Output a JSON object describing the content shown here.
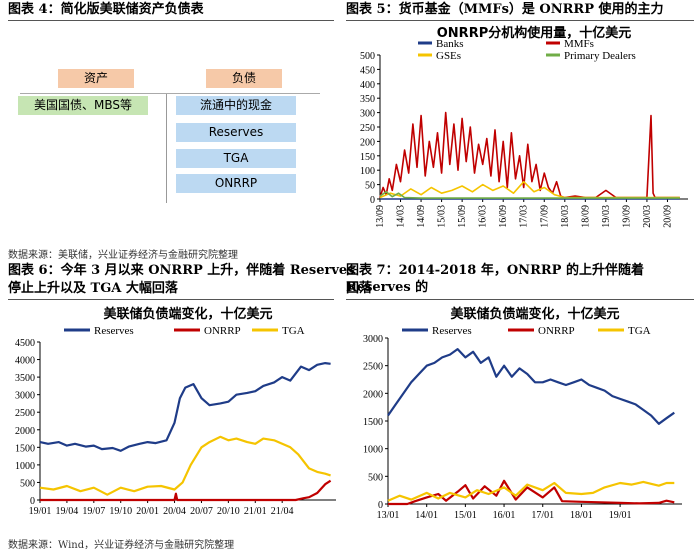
{
  "fig4": {
    "title": "图表 4：简化版美联储资产负债表",
    "assets_label": "资产",
    "liabilities_label": "负债",
    "asset_items": [
      "美国国债、MBS等"
    ],
    "liability_items": [
      "流通中的现金",
      "Reserves",
      "TGA",
      "ONRRP"
    ],
    "colors": {
      "header": "#f6c9a8",
      "asset": "#c6e5b3",
      "liability": "#bcd9f2"
    }
  },
  "fig5": {
    "title": "图表 5：货币基金（MMFs）是 ONRRP 使用的主力"
  },
  "source_top": "数据来源：美联储，兴业证券经济与金融研究院整理",
  "fig6": {
    "title_line1": "图表 6：今年 3 月以来 ONRRP 上升，伴随着 Reserves",
    "title_line2": "停止上升以及 TGA 大幅回落"
  },
  "fig7": {
    "title_line1": "图表 7：2014-2018 年，ONRRP 的上升伴随着 Reserves 的",
    "title_line2": "回落"
  },
  "source_bottom": "数据来源：Wind，兴业证券经济与金融研究院整理",
  "chart_data": [
    {
      "id": "fig5",
      "type": "line",
      "title": "ONRRP分机构使用量，十亿美元",
      "x_ticks": [
        "13/09",
        "14/03",
        "14/09",
        "15/03",
        "15/09",
        "16/03",
        "16/09",
        "17/03",
        "17/09",
        "18/03",
        "18/09",
        "19/03",
        "19/09",
        "20/03",
        "20/09"
      ],
      "ylim": [
        0,
        500
      ],
      "y_ticks": [
        0,
        50,
        100,
        150,
        200,
        250,
        300,
        350,
        400,
        450,
        500
      ],
      "legend_position": "top",
      "series": [
        {
          "name": "Banks",
          "color": "#1f3c88",
          "x": [
            0,
            0.5,
            1,
            1.5,
            2,
            3,
            4,
            5,
            6,
            7,
            8,
            9,
            10,
            11,
            12,
            13,
            13.6,
            14.3,
            14.6
          ],
          "values": [
            0,
            0,
            0,
            0,
            0,
            0,
            0,
            0,
            0,
            0,
            0,
            0,
            0,
            0,
            0,
            0,
            0,
            0,
            0
          ]
        },
        {
          "name": "MMFs",
          "color": "#c00000",
          "x": [
            0,
            0.15,
            0.3,
            0.45,
            0.6,
            0.8,
            1,
            1.2,
            1.4,
            1.6,
            1.8,
            2,
            2.2,
            2.4,
            2.6,
            2.8,
            3,
            3.2,
            3.4,
            3.6,
            3.8,
            4,
            4.2,
            4.4,
            4.6,
            4.8,
            5,
            5.2,
            5.4,
            5.6,
            5.8,
            6,
            6.2,
            6.4,
            6.6,
            6.8,
            7,
            7.2,
            7.4,
            7.6,
            7.8,
            8,
            8.2,
            8.4,
            8.6,
            8.8,
            9,
            9.5,
            10,
            10.5,
            11,
            11.5,
            12,
            12.5,
            13,
            13.2,
            13.3,
            13.4,
            13.6,
            14,
            14.3,
            14.6
          ],
          "values": [
            5,
            40,
            15,
            70,
            30,
            120,
            60,
            170,
            90,
            260,
            110,
            290,
            80,
            200,
            110,
            230,
            90,
            300,
            120,
            260,
            100,
            280,
            130,
            250,
            90,
            190,
            120,
            210,
            80,
            240,
            60,
            200,
            40,
            230,
            70,
            150,
            40,
            190,
            60,
            120,
            30,
            90,
            40,
            20,
            60,
            10,
            5,
            10,
            5,
            5,
            30,
            5,
            5,
            5,
            5,
            290,
            20,
            5,
            5,
            5,
            5,
            5
          ]
        },
        {
          "name": "GSEs",
          "color": "#f5c400",
          "x": [
            0,
            0.5,
            1,
            1.5,
            2,
            2.5,
            3,
            3.5,
            4,
            4.5,
            5,
            5.5,
            6,
            6.5,
            7,
            7.5,
            8,
            8.5,
            9,
            10,
            11,
            12,
            13,
            14,
            14.6
          ],
          "values": [
            5,
            20,
            10,
            35,
            15,
            40,
            20,
            30,
            45,
            25,
            50,
            30,
            45,
            20,
            60,
            25,
            40,
            15,
            5,
            5,
            5,
            5,
            5,
            5,
            5
          ]
        },
        {
          "name": "Primary Dealers",
          "color": "#70ad47",
          "x": [
            0,
            0.3,
            0.6,
            0.9,
            1.2,
            2,
            3,
            4,
            5,
            6,
            7,
            8,
            9,
            10,
            11,
            12,
            13,
            14,
            14.6
          ],
          "values": [
            10,
            25,
            8,
            20,
            5,
            3,
            3,
            3,
            3,
            3,
            3,
            3,
            3,
            3,
            3,
            3,
            3,
            3,
            3
          ]
        }
      ]
    },
    {
      "id": "fig6",
      "type": "line",
      "title": "美联储负债端变化，十亿美元",
      "x_ticks": [
        "19/01",
        "19/04",
        "19/07",
        "19/10",
        "20/01",
        "20/04",
        "20/07",
        "20/10",
        "21/01",
        "21/04"
      ],
      "ylim": [
        0,
        4500
      ],
      "y_ticks": [
        0,
        500,
        1000,
        1500,
        2000,
        2500,
        3000,
        3500,
        4000,
        4500
      ],
      "legend_position": "top",
      "series": [
        {
          "name": "Reserves",
          "color": "#1f3c88",
          "x": [
            0,
            0.3,
            0.7,
            1,
            1.3,
            1.7,
            2,
            2.3,
            2.7,
            3,
            3.3,
            3.7,
            4,
            4.3,
            4.7,
            5,
            5.2,
            5.4,
            5.7,
            6,
            6.3,
            6.7,
            7,
            7.3,
            7.7,
            8,
            8.3,
            8.7,
            9,
            9.3,
            9.7,
            10,
            10.3,
            10.6,
            10.8
          ],
          "values": [
            1650,
            1600,
            1650,
            1550,
            1600,
            1520,
            1550,
            1450,
            1480,
            1400,
            1520,
            1600,
            1650,
            1620,
            1700,
            2200,
            2900,
            3200,
            3300,
            2900,
            2700,
            2750,
            2800,
            3000,
            3050,
            3100,
            3250,
            3350,
            3500,
            3400,
            3800,
            3700,
            3850,
            3900,
            3880
          ]
        },
        {
          "name": "ONRRP",
          "color": "#c00000",
          "x": [
            0,
            1,
            2,
            3,
            4,
            4.5,
            5,
            5.05,
            5.1,
            5.5,
            6,
            7,
            8,
            9,
            9.5,
            9.8,
            10,
            10.3,
            10.6,
            10.8
          ],
          "values": [
            0,
            0,
            0,
            0,
            0,
            0,
            0,
            180,
            0,
            0,
            0,
            0,
            0,
            0,
            0,
            50,
            80,
            200,
            450,
            550
          ]
        },
        {
          "name": "TGA",
          "color": "#f5c400",
          "x": [
            0,
            0.5,
            1,
            1.5,
            2,
            2.5,
            3,
            3.5,
            4,
            4.5,
            5,
            5.3,
            5.6,
            6,
            6.3,
            6.7,
            7,
            7.3,
            7.7,
            8,
            8.3,
            8.7,
            9,
            9.3,
            9.6,
            10,
            10.3,
            10.6,
            10.8
          ],
          "values": [
            350,
            300,
            400,
            250,
            350,
            150,
            350,
            250,
            380,
            400,
            300,
            500,
            1000,
            1500,
            1650,
            1800,
            1700,
            1750,
            1650,
            1600,
            1750,
            1700,
            1600,
            1500,
            1300,
            900,
            800,
            750,
            700
          ]
        }
      ]
    },
    {
      "id": "fig7",
      "type": "line",
      "title": "美联储负债端变化，十亿美元",
      "x_ticks": [
        "13/01",
        "14/01",
        "15/01",
        "16/01",
        "17/01",
        "18/01",
        "19/01"
      ],
      "ylim": [
        0,
        3000
      ],
      "y_ticks": [
        0,
        500,
        1000,
        1500,
        2000,
        2500,
        3000
      ],
      "legend_position": "top",
      "series": [
        {
          "name": "Reserves",
          "color": "#1f3c88",
          "x": [
            0,
            0.2,
            0.4,
            0.6,
            0.8,
            1,
            1.2,
            1.4,
            1.6,
            1.8,
            2,
            2.2,
            2.4,
            2.6,
            2.8,
            3,
            3.2,
            3.4,
            3.6,
            3.8,
            4,
            4.2,
            4.4,
            4.6,
            4.8,
            5,
            5.2,
            5.4,
            5.6,
            5.8,
            6,
            6.2,
            6.4,
            6.6,
            6.8,
            7,
            7.2,
            7.4
          ],
          "values": [
            1600,
            1800,
            2000,
            2200,
            2350,
            2500,
            2550,
            2650,
            2700,
            2800,
            2650,
            2750,
            2550,
            2650,
            2300,
            2500,
            2300,
            2450,
            2350,
            2200,
            2200,
            2250,
            2200,
            2150,
            2200,
            2250,
            2150,
            2100,
            2050,
            1950,
            1900,
            1850,
            1800,
            1700,
            1600,
            1450,
            1550,
            1650
          ]
        },
        {
          "name": "ONRRP",
          "color": "#c00000",
          "x": [
            0,
            0.5,
            0.7,
            1,
            1.3,
            1.5,
            1.8,
            2,
            2.2,
            2.5,
            2.8,
            3,
            3.3,
            3.6,
            4,
            4.3,
            4.5,
            5,
            5.5,
            6,
            6.5,
            7,
            7.2,
            7.4
          ],
          "values": [
            0,
            0,
            50,
            120,
            180,
            60,
            220,
            340,
            100,
            320,
            150,
            420,
            80,
            300,
            120,
            300,
            50,
            40,
            30,
            20,
            10,
            20,
            60,
            30
          ]
        },
        {
          "name": "TGA",
          "color": "#f5c400",
          "x": [
            0,
            0.3,
            0.6,
            1,
            1.3,
            1.6,
            2,
            2.3,
            2.6,
            3,
            3.3,
            3.6,
            4,
            4.3,
            4.6,
            5,
            5.3,
            5.6,
            6,
            6.3,
            6.6,
            7,
            7.2,
            7.4
          ],
          "values": [
            60,
            150,
            80,
            200,
            100,
            200,
            120,
            250,
            180,
            300,
            150,
            350,
            250,
            380,
            200,
            180,
            200,
            300,
            380,
            350,
            400,
            330,
            380,
            380
          ]
        }
      ]
    }
  ]
}
